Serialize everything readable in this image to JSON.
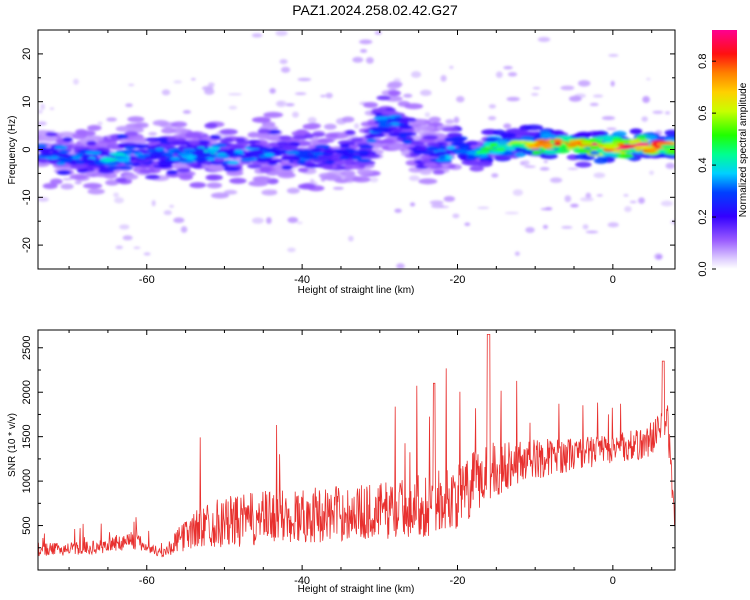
{
  "title": "PAZ1.2024.258.02.42.G27",
  "chart_data": [
    {
      "type": "heatmap",
      "xlabel": "Height of straight line (km)",
      "ylabel": "Frequency (Hz)",
      "xlim": [
        -74,
        8
      ],
      "ylim": [
        -25,
        25
      ],
      "xticks": [
        -60,
        -40,
        -20,
        0
      ],
      "yticks": [
        -20,
        -10,
        0,
        10,
        20
      ],
      "colorbar": {
        "label": "Normalized spectral amplitude",
        "range": [
          0.0,
          0.92
        ],
        "ticks": [
          0.0,
          0.2,
          0.4,
          0.6,
          0.8
        ],
        "colormap": "hsv"
      },
      "ridge": {
        "description": "dominant frequency band vs height",
        "x": [
          -72,
          -68,
          -64,
          -60,
          -56,
          -52,
          -48,
          -44,
          -40,
          -36,
          -32,
          -30,
          -28,
          -26,
          -24,
          -22,
          -20,
          -18,
          -16,
          -12,
          -8,
          -4,
          0,
          4,
          8
        ],
        "y": [
          -1,
          -2,
          -2,
          -1,
          -1,
          -1,
          -1,
          -0.5,
          -1,
          -1,
          -1,
          6,
          6,
          1,
          0,
          -1,
          1,
          -1,
          0.5,
          1,
          1,
          1,
          0.5,
          0.5,
          1
        ],
        "amplitude": [
          0.3,
          0.3,
          0.35,
          0.3,
          0.3,
          0.35,
          0.3,
          0.3,
          0.3,
          0.25,
          0.25,
          0.3,
          0.3,
          0.25,
          0.25,
          0.3,
          0.35,
          0.4,
          0.55,
          0.6,
          0.7,
          0.75,
          0.9,
          0.8,
          0.7
        ]
      }
    },
    {
      "type": "line",
      "xlabel": "Height of straight line (km)",
      "ylabel": "SNR (10 * v/v)",
      "xlim": [
        -74,
        8
      ],
      "ylim": [
        0,
        2700
      ],
      "xticks": [
        -60,
        -40,
        -20,
        0
      ],
      "yticks": [
        500,
        1000,
        1500,
        2000,
        2500
      ],
      "color": "#e8302e",
      "series": [
        {
          "x": [
            -74,
            -70,
            -66,
            -62,
            -58,
            -55,
            -52,
            -48,
            -44,
            -40,
            -36,
            -32,
            -28,
            -24,
            -20,
            -18,
            -16,
            -14,
            -12,
            -8,
            -4,
            0,
            4,
            6,
            7,
            8
          ],
          "mean": [
            220,
            230,
            250,
            330,
            180,
            380,
            500,
            520,
            560,
            580,
            600,
            620,
            650,
            700,
            780,
            900,
            1100,
            1150,
            1200,
            1250,
            1300,
            1350,
            1400,
            1550,
            1700,
            500
          ],
          "spread": [
            120,
            120,
            130,
            180,
            80,
            300,
            450,
            500,
            520,
            520,
            520,
            520,
            550,
            600,
            600,
            650,
            650,
            500,
            400,
            350,
            300,
            280,
            300,
            350,
            400,
            200
          ]
        }
      ]
    }
  ]
}
